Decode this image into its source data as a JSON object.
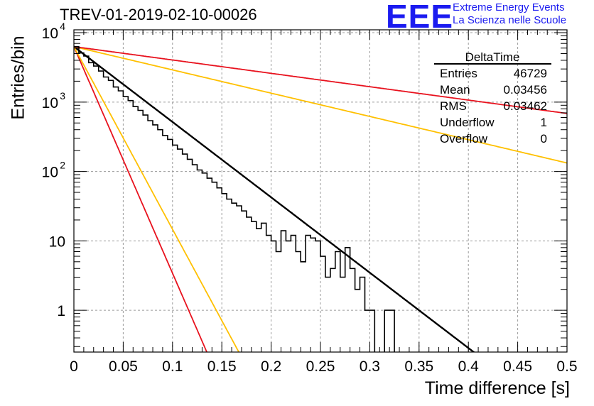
{
  "title": "TREV-01-2019-02-10-00026",
  "logo": {
    "mark": "EEE",
    "line1": "Extreme Energy Events",
    "line2": "La Scienza nelle Scuole",
    "color": "#1b1bf0"
  },
  "stats": {
    "name": "DeltaTime",
    "rows": [
      {
        "label": "Entries",
        "value": "46729"
      },
      {
        "label": "Mean",
        "value": "0.03456"
      },
      {
        "label": "RMS",
        "value": "0.03462"
      },
      {
        "label": "Underflow",
        "value": "1"
      },
      {
        "label": "Overflow",
        "value": "0"
      }
    ]
  },
  "chart_data": {
    "type": "line",
    "title": "TREV-01-2019-02-10-00026",
    "xlabel": "Time difference [s]",
    "ylabel": "Entries/bin",
    "xlim": [
      0,
      0.5
    ],
    "ylim": [
      0.25,
      11000
    ],
    "ylog": true,
    "grid": true,
    "xticks": [
      {
        "v": 0,
        "label": "0"
      },
      {
        "v": 0.05,
        "label": "0.05"
      },
      {
        "v": 0.1,
        "label": "0.1"
      },
      {
        "v": 0.15,
        "label": "0.15"
      },
      {
        "v": 0.2,
        "label": "0.2"
      },
      {
        "v": 0.25,
        "label": "0.25"
      },
      {
        "v": 0.3,
        "label": "0.3"
      },
      {
        "v": 0.35,
        "label": "0.35"
      },
      {
        "v": 0.4,
        "label": "0.4"
      },
      {
        "v": 0.45,
        "label": "0.45"
      },
      {
        "v": 0.5,
        "label": "0.5"
      }
    ],
    "yticks": [
      {
        "v": 1,
        "label": "1",
        "exp": ""
      },
      {
        "v": 10,
        "label": "10",
        "exp": ""
      },
      {
        "v": 100,
        "label": "10",
        "exp": "2"
      },
      {
        "v": 1000,
        "label": "10",
        "exp": "3"
      },
      {
        "v": 10000,
        "label": "10",
        "exp": "4"
      }
    ],
    "histogram": {
      "name": "DeltaTime",
      "color": "#000000",
      "bin_width": 0.005,
      "values": [
        6200,
        5200,
        4500,
        3800,
        3300,
        2700,
        2350,
        2000,
        1680,
        1430,
        1220,
        1030,
        880,
        750,
        640,
        545,
        465,
        395,
        336,
        286,
        243,
        207,
        177,
        152,
        128,
        109,
        93,
        78,
        67,
        57,
        49,
        41,
        35,
        30,
        26,
        22,
        18,
        15,
        13,
        11,
        9,
        8,
        7,
        6,
        5,
        4.5,
        4,
        3.5,
        3,
        2.5,
        2,
        1.8,
        1.6,
        1.4,
        1.2,
        1,
        1,
        1,
        1,
        0.8,
        0.8,
        0.7,
        0.6,
        0.5,
        0.5,
        0.5,
        0.4,
        0.4,
        0.3,
        0.3
      ],
      "observed": [
        6300,
        5100,
        4600,
        3700,
        3300,
        2800,
        2300,
        2050,
        1650,
        1450,
        1200,
        1050,
        860,
        760,
        650,
        540,
        470,
        400,
        330,
        290,
        240,
        210,
        178,
        150,
        125,
        105,
        95,
        80,
        70,
        58,
        48,
        40,
        35,
        32,
        27,
        22,
        19,
        15,
        18,
        12,
        10,
        7,
        14,
        10,
        12,
        7,
        5,
        12,
        11,
        10,
        6,
        3,
        4,
        7,
        3,
        8,
        4,
        2,
        3,
        1,
        1,
        0,
        0,
        1,
        1,
        0,
        0,
        0,
        0,
        0
      ]
    },
    "series": [
      {
        "name": "fit",
        "color": "#000000",
        "a": 6300,
        "tau": 0.04
      },
      {
        "name": "",
        "color": "#e8121e",
        "a": 6300,
        "tau": 0.0133
      },
      {
        "name": "",
        "color": "#ffc000",
        "a": 6300,
        "tau": 0.0165
      },
      {
        "name": "",
        "color": "#ffc000",
        "a": 6300,
        "tau": 0.1295
      },
      {
        "name": "",
        "color": "#e8121e",
        "a": 6300,
        "tau": 0.2255
      }
    ],
    "stats_box": {
      "name": "DeltaTime",
      "placement": "top-right",
      "entries": 46729,
      "mean": 0.03456,
      "rms": 0.03462,
      "underflow": 1,
      "overflow": 0
    },
    "logo_color": "#1b1bf0"
  }
}
